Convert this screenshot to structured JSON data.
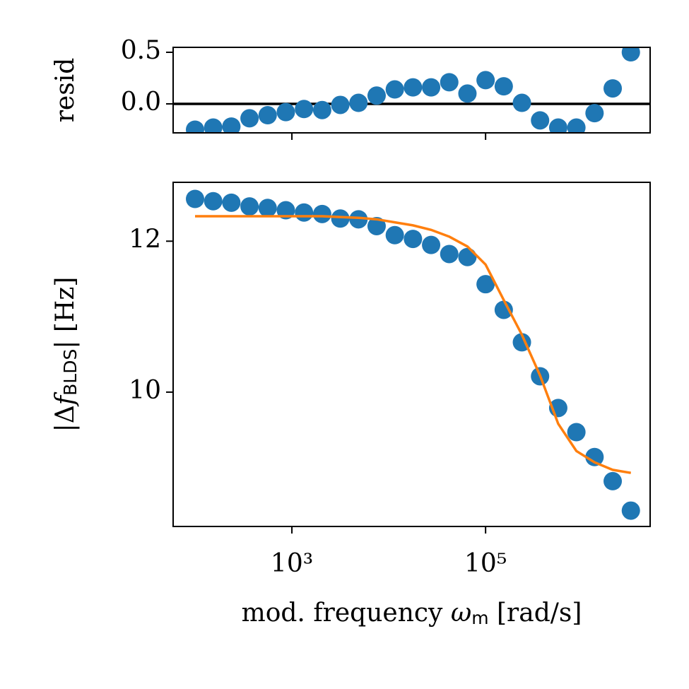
{
  "chart_data": [
    {
      "type": "scatter",
      "ylabel": "resid",
      "xscale": "log",
      "x": [
        100,
        154.0,
        237.1,
        365.2,
        562.3,
        866.0,
        1333.5,
        2053.5,
        3162.3,
        4869.7,
        7498.9,
        11547.8,
        17782.8,
        27384.2,
        42169.7,
        64938.4,
        100000,
        153993,
        237137,
        365174,
        562341,
        865964,
        1333521,
        2053525,
        3162278
      ],
      "series": [
        {
          "color": "#1f77b4",
          "values": [
            -0.25,
            -0.23,
            -0.22,
            -0.14,
            -0.11,
            -0.08,
            -0.05,
            -0.06,
            -0.01,
            0.01,
            0.08,
            0.14,
            0.16,
            0.16,
            0.21,
            0.1,
            0.23,
            0.17,
            0.01,
            -0.16,
            -0.23,
            -0.23,
            -0.09,
            0.15,
            0.5
          ]
        }
      ],
      "hline": 0,
      "hline_color": "#000000",
      "xlim": [
        59.4,
        5000000
      ],
      "xticks": [
        1000,
        100000
      ],
      "ylim": [
        -0.281,
        0.548
      ],
      "yticks": [
        {
          "value": 0,
          "label": "0.0"
        },
        {
          "value": 0.5,
          "label": "0.5"
        }
      ]
    },
    {
      "type": "scatter",
      "xscale": "log",
      "ylabel": [
        "|Δ",
        "f",
        "BLDS",
        "| [Hz]"
      ],
      "xlabel": [
        "mod. frequency ",
        "ω",
        "m",
        " [rad/s]"
      ],
      "x": [
        100,
        154.0,
        237.1,
        365.2,
        562.3,
        866.0,
        1333.5,
        2053.5,
        3162.3,
        4869.7,
        7498.9,
        11547.8,
        17782.8,
        27384.2,
        42169.7,
        64938.4,
        100000,
        153993,
        237137,
        365174,
        562341,
        865964,
        1333521,
        2053525,
        3162278
      ],
      "series": [
        {
          "type": "scatter",
          "color": "#1f77b4",
          "values": [
            12.56,
            12.53,
            12.51,
            12.46,
            12.44,
            12.41,
            12.38,
            12.36,
            12.3,
            12.29,
            12.2,
            12.08,
            12.03,
            11.95,
            11.83,
            11.79,
            11.43,
            11.09,
            10.66,
            10.21,
            9.79,
            9.47,
            9.14,
            8.82,
            8.43
          ]
        },
        {
          "type": "line",
          "color": "#ff7f0e",
          "values": [
            12.33,
            12.33,
            12.33,
            12.33,
            12.33,
            12.33,
            12.33,
            12.33,
            12.32,
            12.31,
            12.29,
            12.25,
            12.21,
            12.15,
            12.06,
            11.93,
            11.69,
            11.22,
            10.76,
            10.22,
            9.58,
            9.22,
            9.07,
            8.97,
            8.93
          ]
        }
      ],
      "xlim": [
        59.4,
        5000000
      ],
      "xticks": [
        {
          "value": 1000,
          "label": "10³"
        },
        {
          "value": 100000,
          "label": "10⁵"
        }
      ],
      "ylim": [
        8.22,
        12.78
      ],
      "yticks": [
        10,
        12
      ]
    }
  ]
}
